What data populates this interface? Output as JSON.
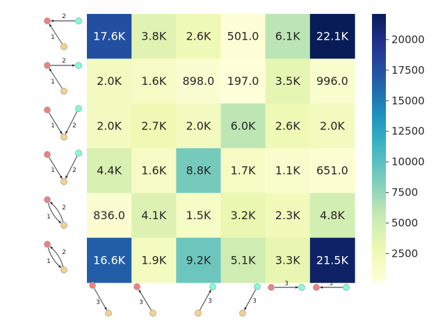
{
  "chart_data": {
    "type": "heatmap",
    "rows": 6,
    "cols": 6,
    "values": [
      [
        17600,
        3800,
        2600,
        501.0,
        6100,
        22100
      ],
      [
        2000,
        1600,
        898.0,
        197.0,
        3500,
        996.0
      ],
      [
        2000,
        2700,
        2000,
        6000,
        2600,
        2000
      ],
      [
        4400,
        1600,
        8800,
        1700,
        1100,
        651.0
      ],
      [
        836.0,
        4100,
        1500,
        3200,
        2300,
        4800
      ],
      [
        16600,
        1900,
        9200,
        5100,
        3300,
        21500
      ]
    ],
    "cell_labels": [
      [
        "17.6K",
        "3.8K",
        "2.6K",
        "501.0",
        "6.1K",
        "22.1K"
      ],
      [
        "2.0K",
        "1.6K",
        "898.0",
        "197.0",
        "3.5K",
        "996.0"
      ],
      [
        "2.0K",
        "2.7K",
        "2.0K",
        "6.0K",
        "2.6K",
        "2.0K"
      ],
      [
        "4.4K",
        "1.6K",
        "8.8K",
        "1.7K",
        "1.1K",
        "651.0"
      ],
      [
        "836.0",
        "4.1K",
        "1.5K",
        "3.2K",
        "2.3K",
        "4.8K"
      ],
      [
        "16.6K",
        "1.9K",
        "9.2K",
        "5.1K",
        "3.3K",
        "21.5K"
      ]
    ],
    "row_motif_labels": [
      [
        "2",
        "1"
      ],
      [
        "2",
        "1"
      ],
      [
        "1",
        "2"
      ],
      [
        "1",
        "2"
      ],
      [
        "2",
        "1"
      ],
      [
        "2",
        "1"
      ]
    ],
    "col_motif_labels": [
      "3",
      "3",
      "3",
      "3",
      "3",
      "3"
    ],
    "colorbar": {
      "min": 197,
      "max": 22100,
      "ticks": [
        2500,
        5000,
        7500,
        10000,
        12500,
        15000,
        17500,
        20000
      ],
      "tick_labels": [
        "2500",
        "5000",
        "7500",
        "10000",
        "12500",
        "15000",
        "17500",
        "20000"
      ],
      "colormap": "YlGnBu"
    },
    "colors": {
      "node_red": "#f08080",
      "node_teal": "#7fffd4",
      "node_yellow": "#f7d08a",
      "text_dark": "#262626",
      "text_light": "#ffffff"
    }
  }
}
